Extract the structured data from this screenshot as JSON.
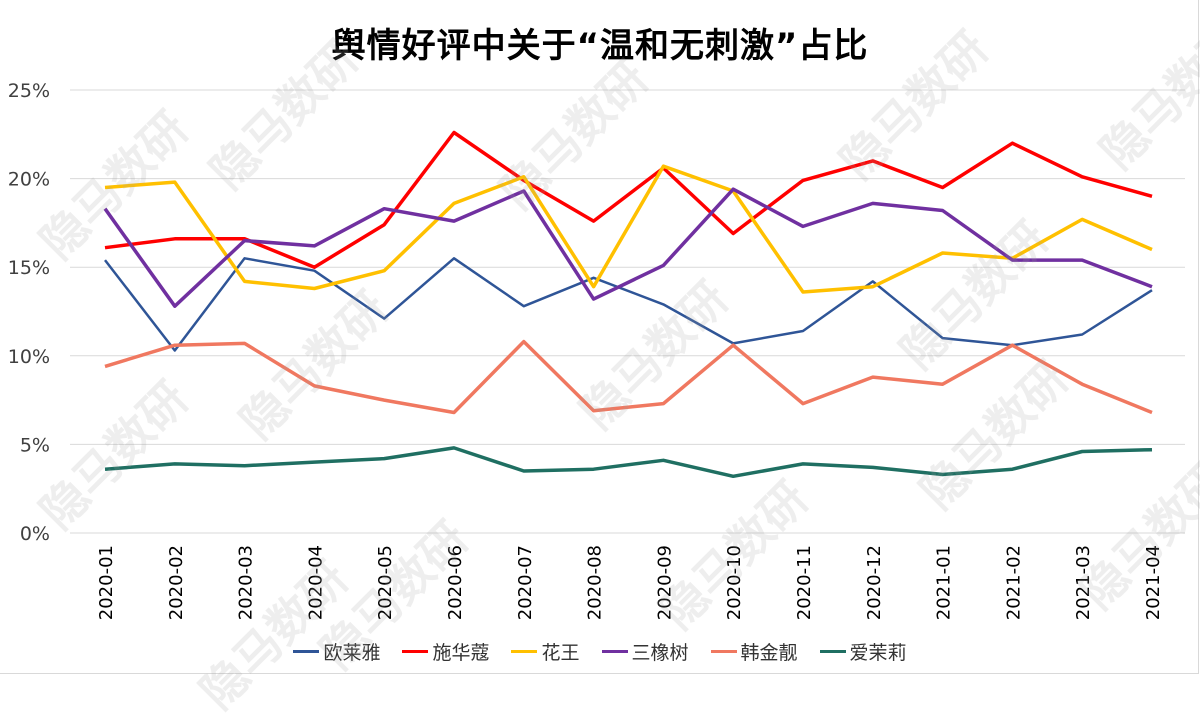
{
  "title": "舆情好评中关于“温和无刺激”占比",
  "watermark_text": "隐马数研",
  "chart_data": {
    "type": "line",
    "title": "舆情好评中关于“温和无刺激”占比",
    "xlabel": "",
    "ylabel": "",
    "ylim": [
      0,
      25
    ],
    "yticks": [
      "0%",
      "5%",
      "10%",
      "15%",
      "20%",
      "25%"
    ],
    "grid": true,
    "legend_position": "bottom",
    "categories": [
      "2020-01",
      "2020-02",
      "2020-03",
      "2020-04",
      "2020-05",
      "2020-06",
      "2020-07",
      "2020-08",
      "2020-09",
      "2020-10",
      "2020-11",
      "2020-12",
      "2021-01",
      "2021-02",
      "2021-03",
      "2021-04"
    ],
    "series": [
      {
        "name": "欧莱雅",
        "color": "#2F5597",
        "values": [
          15.4,
          10.3,
          15.5,
          14.8,
          12.1,
          15.5,
          12.8,
          14.4,
          12.9,
          10.7,
          11.4,
          14.2,
          11.0,
          10.6,
          11.2,
          13.7
        ]
      },
      {
        "name": "施华蔻",
        "color": "#FF0000",
        "values": [
          16.1,
          16.6,
          16.6,
          15.0,
          17.4,
          22.6,
          19.9,
          17.6,
          20.6,
          16.9,
          19.9,
          21.0,
          19.5,
          22.0,
          20.1,
          19.0
        ]
      },
      {
        "name": "花王",
        "color": "#FFC000",
        "values": [
          19.5,
          19.8,
          14.2,
          13.8,
          14.8,
          18.6,
          20.1,
          13.9,
          20.7,
          19.3,
          13.6,
          13.9,
          15.8,
          15.5,
          17.7,
          16.0
        ]
      },
      {
        "name": "三橡树",
        "color": "#7030A0",
        "values": [
          18.3,
          12.8,
          16.5,
          16.2,
          18.3,
          17.6,
          19.3,
          13.2,
          15.1,
          19.4,
          17.3,
          18.6,
          18.2,
          15.4,
          15.4,
          13.9
        ]
      },
      {
        "name": "韩金靓",
        "color": "#F07860",
        "values": [
          9.4,
          10.6,
          10.7,
          8.3,
          7.5,
          6.8,
          10.8,
          6.9,
          7.3,
          10.6,
          7.3,
          8.8,
          8.4,
          10.6,
          8.4,
          6.8
        ]
      },
      {
        "name": "爱茉莉",
        "color": "#1F6F62",
        "values": [
          3.6,
          3.9,
          3.8,
          4.0,
          4.2,
          4.8,
          3.5,
          3.6,
          4.1,
          3.2,
          3.9,
          3.7,
          3.3,
          3.6,
          4.6,
          4.7
        ]
      }
    ]
  }
}
